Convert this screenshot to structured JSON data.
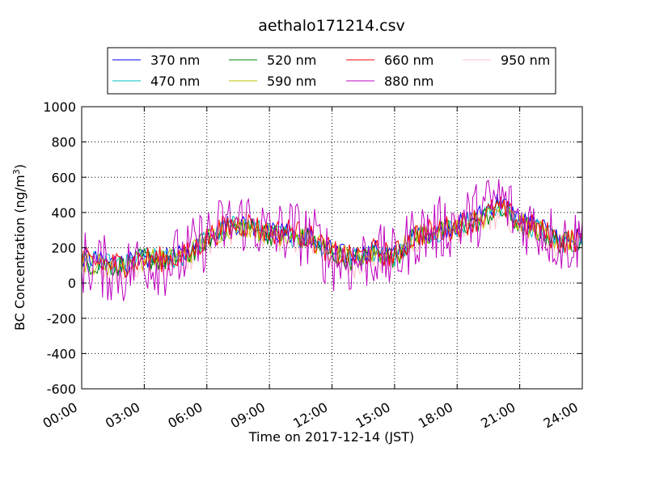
{
  "chart_data": {
    "type": "line",
    "title": "aethalo171214.csv",
    "xlabel": "Time on 2017-12-14 (JST)",
    "ylabel": "BC Concentration (ng/m",
    "ylabel_superscript": "3",
    "ylabel_suffix": ")",
    "xlim": [
      "00:00",
      "24:00"
    ],
    "ylim": [
      -600,
      1000
    ],
    "grid": true,
    "legend_position": "top",
    "x_ticks": [
      "00:00",
      "03:00",
      "06:00",
      "09:00",
      "12:00",
      "15:00",
      "18:00",
      "21:00",
      "24:00"
    ],
    "y_ticks": [
      "-600",
      "-400",
      "-200",
      "0",
      "200",
      "400",
      "600",
      "800",
      "1000"
    ],
    "x_hours": [
      0,
      1,
      2,
      3,
      4,
      5,
      6,
      7,
      8,
      9,
      10,
      11,
      12,
      13,
      14,
      15,
      16,
      17,
      18,
      19,
      20,
      21,
      22,
      23,
      24
    ],
    "series": [
      {
        "name": "370 nm",
        "color": "#0000ff",
        "values": [
          150,
          120,
          110,
          130,
          140,
          160,
          260,
          330,
          340,
          290,
          280,
          260,
          180,
          150,
          190,
          160,
          280,
          300,
          330,
          380,
          470,
          360,
          310,
          240,
          260
        ]
      },
      {
        "name": "470 nm",
        "color": "#00bfbf",
        "values": [
          130,
          110,
          100,
          150,
          130,
          150,
          250,
          320,
          330,
          280,
          270,
          250,
          170,
          140,
          180,
          150,
          270,
          290,
          320,
          360,
          440,
          340,
          300,
          230,
          250
        ]
      },
      {
        "name": "520 nm",
        "color": "#008000",
        "values": [
          120,
          100,
          95,
          140,
          125,
          145,
          245,
          310,
          320,
          275,
          265,
          245,
          160,
          130,
          170,
          145,
          265,
          285,
          315,
          350,
          420,
          330,
          290,
          225,
          245
        ]
      },
      {
        "name": "590 nm",
        "color": "#bfbf00",
        "values": [
          125,
          105,
          100,
          135,
          130,
          150,
          250,
          315,
          325,
          280,
          270,
          250,
          165,
          135,
          175,
          150,
          270,
          290,
          320,
          355,
          425,
          335,
          295,
          230,
          250
        ]
      },
      {
        "name": "660 nm",
        "color": "#ff0000",
        "values": [
          130,
          110,
          105,
          140,
          135,
          155,
          255,
          325,
          335,
          285,
          300,
          255,
          170,
          140,
          180,
          155,
          275,
          295,
          325,
          365,
          430,
          345,
          300,
          235,
          255
        ]
      },
      {
        "name": "880 nm",
        "color": "#bf00bf",
        "values": [
          120,
          90,
          60,
          130,
          110,
          150,
          260,
          330,
          360,
          270,
          300,
          260,
          140,
          110,
          160,
          120,
          280,
          300,
          340,
          390,
          480,
          360,
          310,
          230,
          250
        ]
      },
      {
        "name": "950 nm",
        "color": "#ffc0cb",
        "values": [
          100,
          80,
          60,
          120,
          110,
          140,
          240,
          300,
          320,
          260,
          270,
          240,
          150,
          110,
          150,
          120,
          260,
          280,
          310,
          340,
          400,
          320,
          280,
          220,
          240
        ]
      }
    ]
  }
}
